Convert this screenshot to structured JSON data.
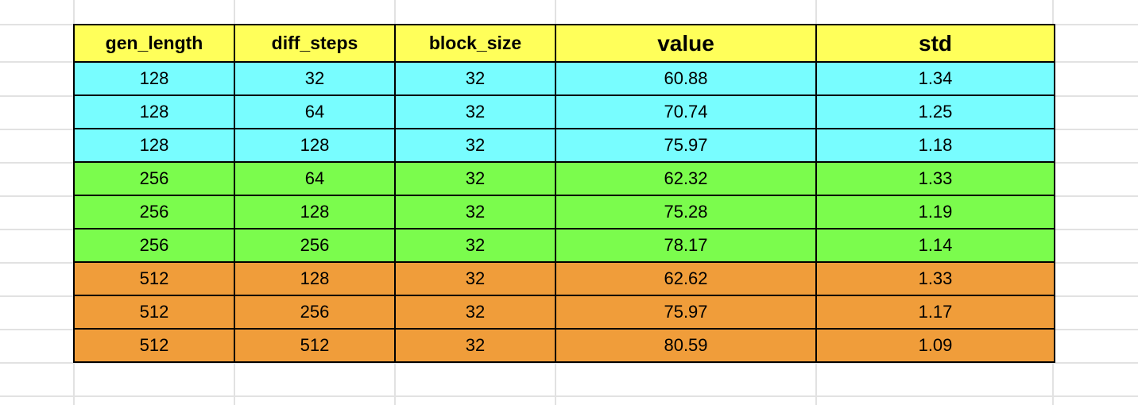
{
  "sheet": {
    "columns": [
      {
        "label": "gen_length",
        "big": false
      },
      {
        "label": "diff_steps",
        "big": false
      },
      {
        "label": "block_size",
        "big": false
      },
      {
        "label": "value",
        "big": true
      },
      {
        "label": "std",
        "big": true
      }
    ],
    "group_colors": {
      "cyan": "#78fdff",
      "green": "#7bfc4d",
      "orange": "#f09d3a",
      "header": "#ffff5a"
    },
    "rows": [
      {
        "group": "cyan",
        "cells": [
          "128",
          "32",
          "32",
          "60.88",
          "1.34"
        ]
      },
      {
        "group": "cyan",
        "cells": [
          "128",
          "64",
          "32",
          "70.74",
          "1.25"
        ]
      },
      {
        "group": "cyan",
        "cells": [
          "128",
          "128",
          "32",
          "75.97",
          "1.18"
        ]
      },
      {
        "group": "green",
        "cells": [
          "256",
          "64",
          "32",
          "62.32",
          "1.33"
        ]
      },
      {
        "group": "green",
        "cells": [
          "256",
          "128",
          "32",
          "75.28",
          "1.19"
        ]
      },
      {
        "group": "green",
        "cells": [
          "256",
          "256",
          "32",
          "78.17",
          "1.14"
        ]
      },
      {
        "group": "orange",
        "cells": [
          "512",
          "128",
          "32",
          "62.62",
          "1.33"
        ]
      },
      {
        "group": "orange",
        "cells": [
          "512",
          "256",
          "32",
          "75.97",
          "1.17"
        ]
      },
      {
        "group": "orange",
        "cells": [
          "512",
          "512",
          "32",
          "80.59",
          "1.09"
        ]
      }
    ]
  }
}
